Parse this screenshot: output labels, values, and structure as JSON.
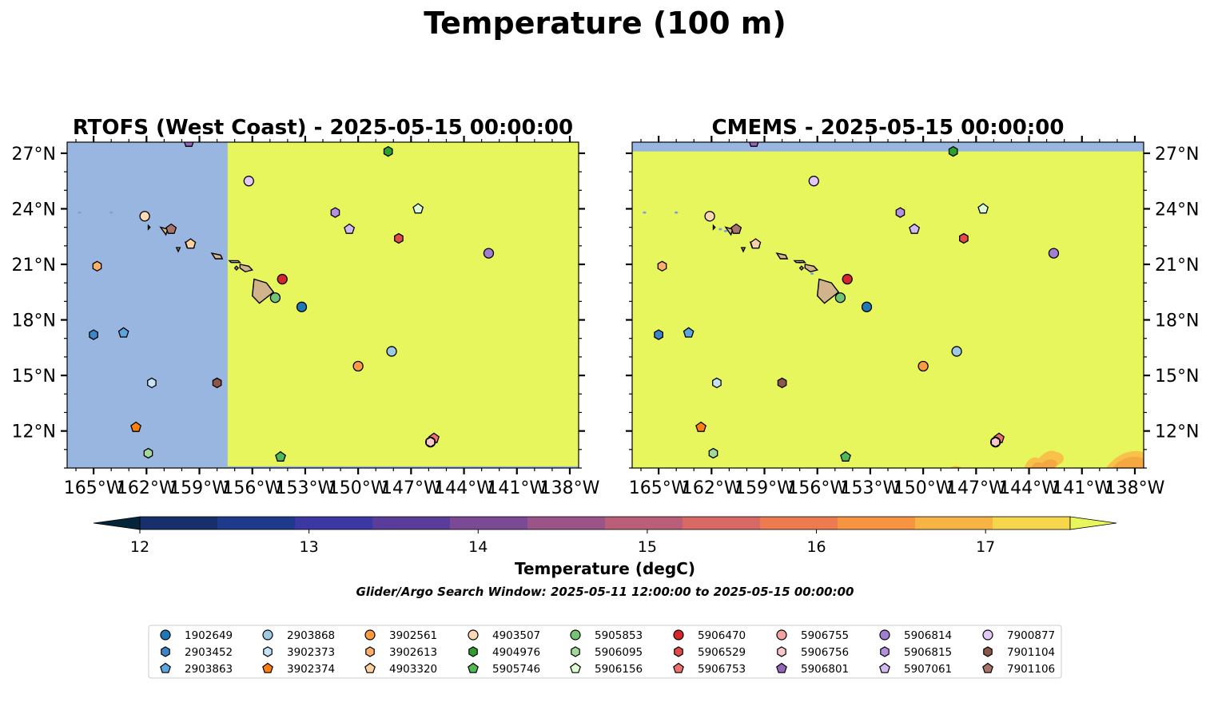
{
  "figure": {
    "title": "Temperature (100 m)",
    "subtitle": "Glider/Argo Search Window: 2025-05-11 12:00:00 to 2025-05-15 00:00:00"
  },
  "colorbar": {
    "label": "Temperature (degC)",
    "ticks": [
      "12",
      "13",
      "14",
      "15",
      "16",
      "17"
    ],
    "min": 12,
    "max": 17.5,
    "step": 0.5,
    "extend": "both",
    "colors": [
      "#03253a",
      "#172f6a",
      "#1e3a8a",
      "#3b37a3",
      "#5a3c9a",
      "#7a4a94",
      "#9b5488",
      "#bb5f78",
      "#d86a66",
      "#ec7b4f",
      "#f59441",
      "#f7b444",
      "#f6d64b",
      "#e6f65c"
    ]
  },
  "chart_data": [
    {
      "type": "map",
      "title": "RTOFS (West Coast) - 2025-05-15 00:00:00",
      "lon_range": [
        -166.5,
        -137.5
      ],
      "lat_range": [
        10.0,
        27.6
      ],
      "x_ticks": [
        "165°W",
        "162°W",
        "159°W",
        "156°W",
        "153°W",
        "150°W",
        "147°W",
        "144°W",
        "141°W",
        "138°W"
      ],
      "y_ticks": [
        "12°N",
        "15°N",
        "18°N",
        "21°N",
        "24°N",
        "27°N"
      ],
      "y_tick_side": "left",
      "field": {
        "no_data_west_of_lon": -157.4,
        "no_data_south_of_lat": 10.05,
        "value_degC": "> 17.5"
      }
    },
    {
      "type": "map",
      "title": "CMEMS - 2025-05-15 00:00:00",
      "lon_range": [
        -166.5,
        -137.5
      ],
      "lat_range": [
        10.0,
        27.6
      ],
      "x_ticks": [
        "165°W",
        "162°W",
        "159°W",
        "156°W",
        "153°W",
        "150°W",
        "147°W",
        "144°W",
        "141°W",
        "138°W"
      ],
      "y_ticks": [
        "12°N",
        "15°N",
        "18°N",
        "21°N",
        "24°N",
        "27°N"
      ],
      "y_tick_side": "right",
      "field": {
        "no_data_north_of_lat": 27.1,
        "value_degC": "> 17.5",
        "warm_patches_degC": [
          16.5,
          17.0
        ]
      }
    }
  ],
  "floats": [
    {
      "id": "1902649",
      "marker": "circle",
      "color": "#1f77b4",
      "lon": -153.2,
      "lat": 18.7
    },
    {
      "id": "2903452",
      "marker": "hexagon",
      "color": "#3d85c6",
      "lon": -165.0,
      "lat": 17.2
    },
    {
      "id": "2903863",
      "marker": "pentagon",
      "color": "#5da5e0",
      "lon": -163.3,
      "lat": 17.3
    },
    {
      "id": "2903868",
      "marker": "circle",
      "color": "#9ecae1",
      "lon": -148.1,
      "lat": 16.3
    },
    {
      "id": "3902373",
      "marker": "hexagon",
      "color": "#c6e3f7",
      "lon": -161.7,
      "lat": 14.6
    },
    {
      "id": "3902374",
      "marker": "pentagon",
      "color": "#ff7f0e",
      "lon": -162.6,
      "lat": 12.2
    },
    {
      "id": "3902561",
      "marker": "circle",
      "color": "#fd9a44",
      "lon": -150.0,
      "lat": 15.5
    },
    {
      "id": "3902613",
      "marker": "hexagon",
      "color": "#fdae6b",
      "lon": -164.8,
      "lat": 20.9
    },
    {
      "id": "4903320",
      "marker": "pentagon",
      "color": "#fdd0a2",
      "lon": -159.5,
      "lat": 22.1
    },
    {
      "id": "4903507",
      "marker": "circle",
      "color": "#fdd8b5",
      "lon": -162.1,
      "lat": 23.6
    },
    {
      "id": "4904976",
      "marker": "hexagon",
      "color": "#2ca02c",
      "lon": -148.3,
      "lat": 27.1
    },
    {
      "id": "5905746",
      "marker": "pentagon",
      "color": "#52b852",
      "lon": -154.4,
      "lat": 10.6
    },
    {
      "id": "5905853",
      "marker": "circle",
      "color": "#74c476",
      "lon": -154.7,
      "lat": 19.2
    },
    {
      "id": "5906095",
      "marker": "hexagon",
      "color": "#a1d99b",
      "lon": -161.9,
      "lat": 10.8
    },
    {
      "id": "5906156",
      "marker": "pentagon",
      "color": "#dcfcd4",
      "lon": -146.6,
      "lat": 24.0
    },
    {
      "id": "5906470",
      "marker": "circle",
      "color": "#d62728",
      "lon": -154.3,
      "lat": 20.2
    },
    {
      "id": "5906529",
      "marker": "hexagon",
      "color": "#e34a4a",
      "lon": -147.7,
      "lat": 22.4
    },
    {
      "id": "5906753",
      "marker": "pentagon",
      "color": "#f07070",
      "lon": -145.7,
      "lat": 11.6
    },
    {
      "id": "5906755",
      "marker": "circle",
      "color": "#f4a3a3",
      "lon": -145.9,
      "lat": 11.4
    },
    {
      "id": "5906756",
      "marker": "hexagon",
      "color": "#fcc7c7",
      "lon": -145.9,
      "lat": 11.4
    },
    {
      "id": "5906801",
      "marker": "pentagon",
      "color": "#9467bd",
      "lon": -159.6,
      "lat": 27.6
    },
    {
      "id": "5906814",
      "marker": "circle",
      "color": "#a07fd0",
      "lon": -142.6,
      "lat": 21.6
    },
    {
      "id": "5906815",
      "marker": "hexagon",
      "color": "#b690e0",
      "lon": -151.3,
      "lat": 23.8
    },
    {
      "id": "5907061",
      "marker": "pentagon",
      "color": "#d4b8f2",
      "lon": -150.5,
      "lat": 22.9
    },
    {
      "id": "7900877",
      "marker": "circle",
      "color": "#e3c9f8",
      "lon": -156.2,
      "lat": 25.5
    },
    {
      "id": "7901104",
      "marker": "hexagon",
      "color": "#8c564b",
      "lon": -158.0,
      "lat": 14.6
    },
    {
      "id": "7901106",
      "marker": "pentagon",
      "color": "#a8736a",
      "lon": -160.6,
      "lat": 22.9
    }
  ],
  "legend": {
    "columns": 9,
    "rows": 3,
    "placement": "bottom-center"
  },
  "land_color": "#d2b48c",
  "missing_color": "#99b6e0"
}
